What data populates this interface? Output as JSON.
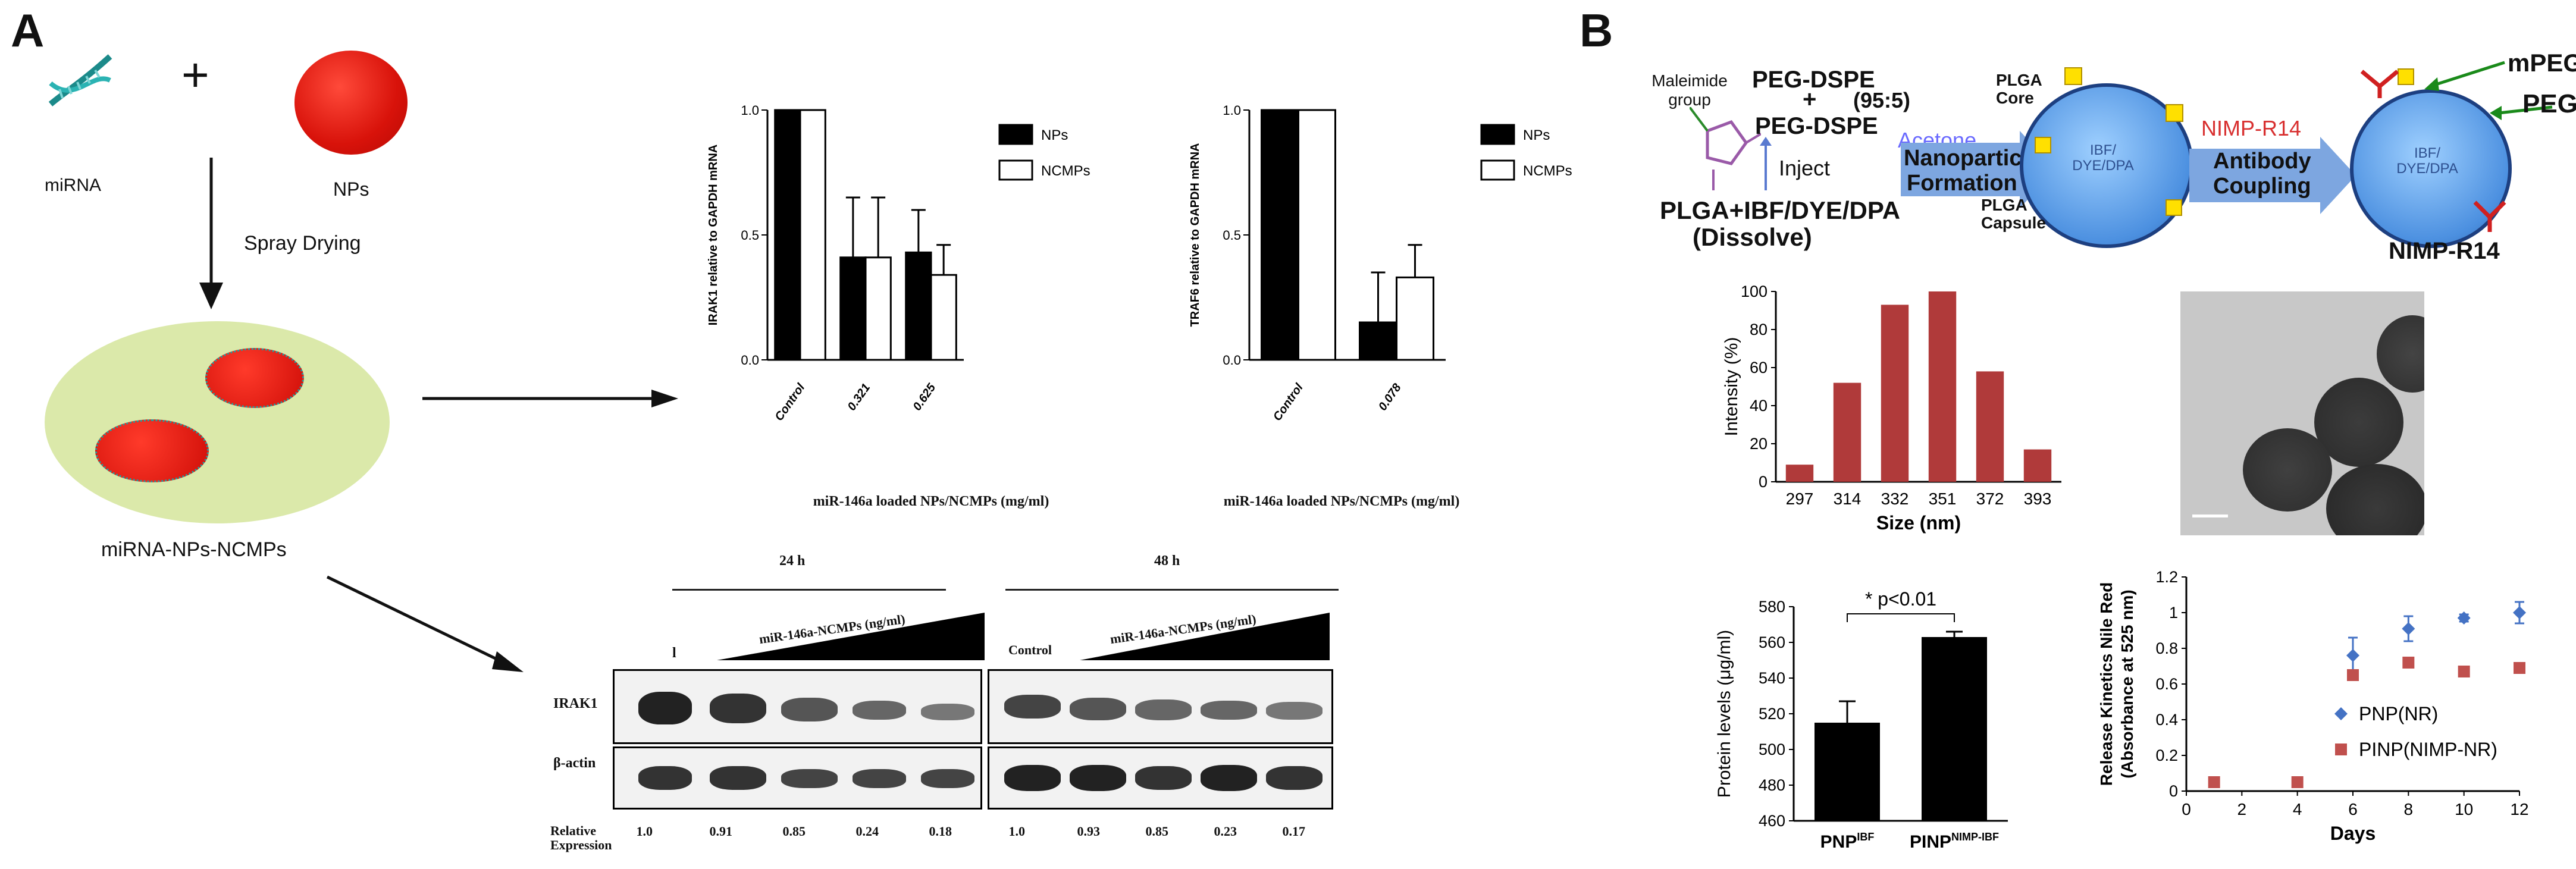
{
  "panelA": {
    "letter": "A",
    "mirna_label": "miRNA",
    "plus": "+",
    "nps_label": "NPs",
    "spray_label": "Spray Drying",
    "composite_label": "miRNA-NPs-NCMPs",
    "xlabel1": "miR-146a loaded NPs/NCMPs (mg/ml)",
    "xlabel2": "miR-146a loaded NPs/NCMPs (mg/ml)",
    "blot": {
      "time1": "24 h",
      "time2": "48 h",
      "ramp_label1": "miR-146a-NCMPs (ng/ml)",
      "ramp_label2": "miR-146a-NCMPs (ng/ml)",
      "control_partial": "l",
      "control2": "Control",
      "row1": "IRAK1",
      "row2": "β-actin",
      "relative_label": "Relative Expression",
      "values24": [
        "1.0",
        "0.91",
        "0.85",
        "0.24",
        "0.18"
      ],
      "values48": [
        "1.0",
        "0.93",
        "0.85",
        "0.23",
        "0.17"
      ]
    }
  },
  "panelB": {
    "letter": "B",
    "schematic": {
      "maleimide": "Maleimide group",
      "peg_dspe_1": "PEG-DSPE",
      "ratio": "(95:5)",
      "plus": "+",
      "peg_dspe_2": "PEG-DSPE",
      "acetone": "Acetone",
      "inject": "Inject",
      "dissolve_1": "PLGA+IBF/DYE/DPA",
      "dissolve_2": "(Dissolve)",
      "nano_1": "Nanoparticle",
      "nano_2": "Formation",
      "plga_core": "PLGA Core",
      "plga_capsule": "PLGA Capsule",
      "core_text": "IBF/ DYE/DPA",
      "nimp_arrow": "NIMP-R14",
      "antibody_1": "Antibody",
      "antibody_2": "Coupling",
      "mpeg": "mPEG",
      "peg": "PEG",
      "nimp_bottom": "NIMP-R14"
    },
    "protein": {
      "ylabel": "Protein levels (μg/ml)",
      "pval": "* p<0.01"
    }
  },
  "chart_data": [
    {
      "type": "bar",
      "ylabel": "IRAK1 relative to GAPDH mRNA",
      "categories": [
        "Control",
        "0.321",
        "0.625"
      ],
      "series": [
        {
          "name": "NPs",
          "values": [
            1.0,
            0.41,
            0.43
          ],
          "errors": [
            0,
            0.24,
            0.17
          ],
          "color": "#000000"
        },
        {
          "name": "NCMPs",
          "values": [
            1.0,
            0.41,
            0.34
          ],
          "errors": [
            0,
            0.24,
            0.12
          ],
          "color": "#ffffff"
        }
      ],
      "ylim": [
        0,
        1.0
      ],
      "yticks": [
        "0.0",
        "0.5",
        "1.0"
      ],
      "legend": "top-right"
    },
    {
      "type": "bar",
      "ylabel": "TRAF6 relative to GAPDH mRNA",
      "categories": [
        "Control",
        "0.078"
      ],
      "series": [
        {
          "name": "NPs",
          "values": [
            1.0,
            0.15
          ],
          "errors": [
            0,
            0.2
          ],
          "color": "#000000"
        },
        {
          "name": "NCMPs",
          "values": [
            1.0,
            0.33
          ],
          "errors": [
            0,
            0.13
          ],
          "color": "#ffffff"
        }
      ],
      "ylim": [
        0,
        1.0
      ],
      "yticks": [
        "0.0",
        "0.5",
        "1.0"
      ],
      "legend": "top-right"
    },
    {
      "type": "bar",
      "xlabel": "Size (nm)",
      "ylabel": "Intensity (%)",
      "categories": [
        "297",
        "314",
        "332",
        "351",
        "372",
        "393"
      ],
      "values": [
        9,
        52,
        93,
        100,
        58,
        17
      ],
      "ylim": [
        0,
        100
      ],
      "yticks": [
        "0",
        "20",
        "40",
        "60",
        "80",
        "100"
      ],
      "color": "#b03a3a"
    },
    {
      "type": "bar",
      "ylabel": "Protein levels (μg/ml)",
      "categories": [
        "PNP^IBF",
        "PINP^NIMP-IBF"
      ],
      "cat_base": [
        "PNP",
        "PINP"
      ],
      "cat_sup": [
        "IBF",
        "NIMP-IBF"
      ],
      "values": [
        515,
        563
      ],
      "errors": [
        12,
        3
      ],
      "ylim": [
        460,
        580
      ],
      "yticks": [
        "460",
        "480",
        "500",
        "520",
        "540",
        "560",
        "580"
      ],
      "color": "#000000"
    },
    {
      "type": "scatter",
      "xlabel": "Days",
      "ylabel": "Release Kinetics Nile Red (Absorbance at 525 nm)",
      "ylabel_1": "Release Kinetics Nile Red",
      "ylabel_2": "(Absorbance at 525 nm)",
      "xlim": [
        0,
        12
      ],
      "ylim": [
        0,
        1.2
      ],
      "xticks": [
        "0",
        "2",
        "4",
        "6",
        "8",
        "10",
        "12"
      ],
      "yticks": [
        "0",
        "0.2",
        "0.4",
        "0.6",
        "0.8",
        "1",
        "1.2"
      ],
      "series": [
        {
          "name": "PNP(NR)",
          "x": [
            6,
            8,
            10,
            12
          ],
          "y": [
            0.76,
            0.91,
            0.97,
            1.0
          ],
          "errors": [
            0.1,
            0.07,
            0.02,
            0.06
          ],
          "color": "#4472c4",
          "marker": "diamond"
        },
        {
          "name": "PINP(NIMP-NR)",
          "x": [
            1,
            4,
            6,
            8,
            10,
            12
          ],
          "y": [
            0.05,
            0.05,
            0.65,
            0.72,
            0.67,
            0.69
          ],
          "color": "#c0504d",
          "marker": "square"
        }
      ],
      "legend": "bottom-right"
    }
  ]
}
